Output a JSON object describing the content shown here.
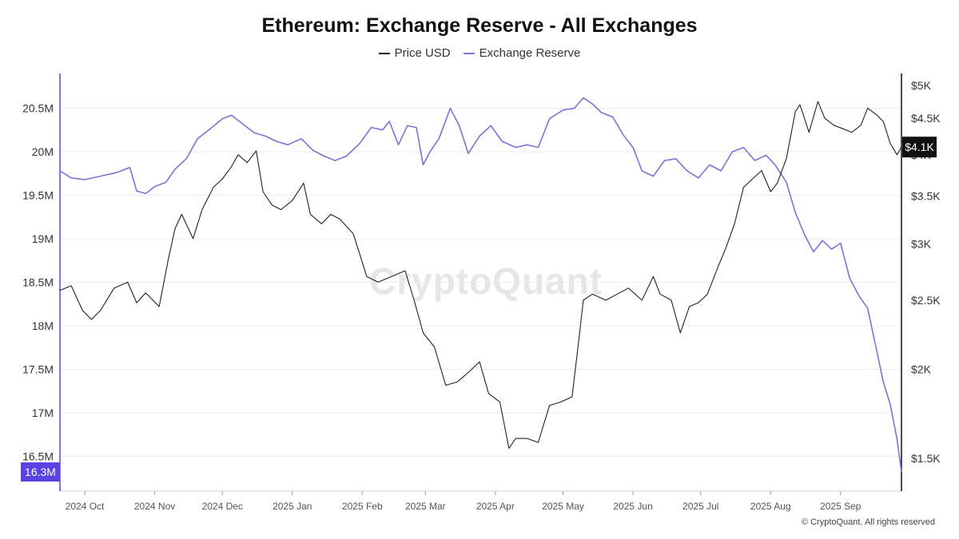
{
  "title": "Ethereum: Exchange Reserve - All Exchanges",
  "watermark": "CryptoQuant",
  "copyright": "© CryptoQuant. All rights reserved",
  "colors": {
    "price": "#222222",
    "reserve": "#7b73d6",
    "reserve_badge": "#5a43e0",
    "price_badge": "#111111"
  },
  "chart_data": {
    "type": "line",
    "title": "Ethereum: Exchange Reserve - All Exchanges",
    "legend": [
      "Price USD",
      "Exchange Reserve"
    ],
    "legend_position": "top-center",
    "x_labels": [
      "2024 Oct",
      "2024 Nov",
      "2024 Dec",
      "2025 Jan",
      "2025 Feb",
      "2025 Mar",
      "2025 Apr",
      "2025 May",
      "2025 Jun",
      "2025 Jul",
      "2025 Aug",
      "2025 Sep"
    ],
    "x_range": [
      "2024-09-20",
      "2025-09-28"
    ],
    "left_axis": {
      "label": "",
      "ticks": [
        20.5,
        20,
        19.5,
        19,
        18.5,
        18,
        17.5,
        17,
        16.5
      ],
      "tick_labels": [
        "20.5M",
        "20M",
        "19.5M",
        "19M",
        "18.5M",
        "18M",
        "17.5M",
        "17M",
        "16.5M"
      ],
      "range": [
        16.1,
        20.9
      ]
    },
    "right_axis": {
      "label": "",
      "scale": "log",
      "ticks": [
        5000,
        4500,
        4000,
        3500,
        3000,
        2500,
        2000,
        1500
      ],
      "tick_labels": [
        "$5K",
        "$4.5K",
        "$4K",
        "$3.5K",
        "$3K",
        "$2.5K",
        "$2K",
        "$1.5K"
      ],
      "range": [
        1350,
        5200
      ]
    },
    "grid": "horizontal",
    "current_badges": {
      "reserve": "16.3M",
      "price": "$4.1K"
    },
    "series": [
      {
        "name": "Exchange Reserve",
        "axis": "left",
        "unit": "M ETH",
        "points": [
          [
            "2024-09-20",
            19.78
          ],
          [
            "2024-09-25",
            19.7
          ],
          [
            "2024-10-01",
            19.68
          ],
          [
            "2024-10-08",
            19.72
          ],
          [
            "2024-10-15",
            19.76
          ],
          [
            "2024-10-21",
            19.82
          ],
          [
            "2024-10-24",
            19.55
          ],
          [
            "2024-10-28",
            19.52
          ],
          [
            "2024-11-01",
            19.6
          ],
          [
            "2024-11-06",
            19.65
          ],
          [
            "2024-11-10",
            19.8
          ],
          [
            "2024-11-15",
            19.92
          ],
          [
            "2024-11-20",
            20.15
          ],
          [
            "2024-11-25",
            20.25
          ],
          [
            "2024-12-01",
            20.38
          ],
          [
            "2024-12-05",
            20.42
          ],
          [
            "2024-12-10",
            20.32
          ],
          [
            "2024-12-15",
            20.22
          ],
          [
            "2024-12-20",
            20.18
          ],
          [
            "2024-12-25",
            20.12
          ],
          [
            "2024-12-30",
            20.08
          ],
          [
            "2025-01-05",
            20.15
          ],
          [
            "2025-01-10",
            20.02
          ],
          [
            "2025-01-15",
            19.95
          ],
          [
            "2025-01-20",
            19.9
          ],
          [
            "2025-01-25",
            19.95
          ],
          [
            "2025-01-31",
            20.1
          ],
          [
            "2025-02-05",
            20.28
          ],
          [
            "2025-02-10",
            20.25
          ],
          [
            "2025-02-13",
            20.35
          ],
          [
            "2025-02-17",
            20.08
          ],
          [
            "2025-02-21",
            20.3
          ],
          [
            "2025-02-25",
            20.28
          ],
          [
            "2025-02-28",
            19.85
          ],
          [
            "2025-03-03",
            20.0
          ],
          [
            "2025-03-07",
            20.15
          ],
          [
            "2025-03-12",
            20.5
          ],
          [
            "2025-03-16",
            20.3
          ],
          [
            "2025-03-20",
            19.98
          ],
          [
            "2025-03-25",
            20.18
          ],
          [
            "2025-03-30",
            20.3
          ],
          [
            "2025-04-04",
            20.12
          ],
          [
            "2025-04-10",
            20.05
          ],
          [
            "2025-04-15",
            20.08
          ],
          [
            "2025-04-20",
            20.05
          ],
          [
            "2025-04-25",
            20.38
          ],
          [
            "2025-05-01",
            20.48
          ],
          [
            "2025-05-06",
            20.5
          ],
          [
            "2025-05-10",
            20.62
          ],
          [
            "2025-05-14",
            20.55
          ],
          [
            "2025-05-18",
            20.45
          ],
          [
            "2025-05-23",
            20.4
          ],
          [
            "2025-05-28",
            20.18
          ],
          [
            "2025-06-01",
            20.05
          ],
          [
            "2025-06-05",
            19.78
          ],
          [
            "2025-06-10",
            19.72
          ],
          [
            "2025-06-15",
            19.9
          ],
          [
            "2025-06-20",
            19.92
          ],
          [
            "2025-06-25",
            19.78
          ],
          [
            "2025-06-30",
            19.7
          ],
          [
            "2025-07-05",
            19.85
          ],
          [
            "2025-07-10",
            19.78
          ],
          [
            "2025-07-15",
            20.0
          ],
          [
            "2025-07-20",
            20.05
          ],
          [
            "2025-07-25",
            19.9
          ],
          [
            "2025-07-30",
            19.96
          ],
          [
            "2025-08-03",
            19.85
          ],
          [
            "2025-08-08",
            19.65
          ],
          [
            "2025-08-12",
            19.3
          ],
          [
            "2025-08-16",
            19.05
          ],
          [
            "2025-08-20",
            18.85
          ],
          [
            "2025-08-24",
            18.98
          ],
          [
            "2025-08-28",
            18.88
          ],
          [
            "2025-09-01",
            18.95
          ],
          [
            "2025-09-05",
            18.55
          ],
          [
            "2025-09-09",
            18.35
          ],
          [
            "2025-09-13",
            18.2
          ],
          [
            "2025-09-17",
            17.72
          ],
          [
            "2025-09-20",
            17.35
          ],
          [
            "2025-09-23",
            17.1
          ],
          [
            "2025-09-26",
            16.7
          ],
          [
            "2025-09-28",
            16.32
          ]
        ]
      },
      {
        "name": "Price USD",
        "axis": "right",
        "unit": "USD",
        "points": [
          [
            "2024-09-20",
            2580
          ],
          [
            "2024-09-25",
            2620
          ],
          [
            "2024-09-30",
            2420
          ],
          [
            "2024-10-04",
            2350
          ],
          [
            "2024-10-08",
            2420
          ],
          [
            "2024-10-14",
            2600
          ],
          [
            "2024-10-20",
            2650
          ],
          [
            "2024-10-24",
            2480
          ],
          [
            "2024-10-28",
            2560
          ],
          [
            "2024-11-03",
            2450
          ],
          [
            "2024-11-07",
            2850
          ],
          [
            "2024-11-10",
            3150
          ],
          [
            "2024-11-13",
            3300
          ],
          [
            "2024-11-18",
            3050
          ],
          [
            "2024-11-22",
            3350
          ],
          [
            "2024-11-27",
            3600
          ],
          [
            "2024-12-01",
            3700
          ],
          [
            "2024-12-05",
            3850
          ],
          [
            "2024-12-08",
            4000
          ],
          [
            "2024-12-12",
            3900
          ],
          [
            "2024-12-16",
            4050
          ],
          [
            "2024-12-19",
            3550
          ],
          [
            "2024-12-23",
            3400
          ],
          [
            "2024-12-27",
            3350
          ],
          [
            "2025-01-01",
            3450
          ],
          [
            "2025-01-06",
            3650
          ],
          [
            "2025-01-09",
            3300
          ],
          [
            "2025-01-14",
            3200
          ],
          [
            "2025-01-18",
            3300
          ],
          [
            "2025-01-22",
            3250
          ],
          [
            "2025-01-28",
            3100
          ],
          [
            "2025-02-03",
            2700
          ],
          [
            "2025-02-08",
            2650
          ],
          [
            "2025-02-14",
            2700
          ],
          [
            "2025-02-20",
            2750
          ],
          [
            "2025-02-24",
            2500
          ],
          [
            "2025-02-28",
            2250
          ],
          [
            "2025-03-05",
            2150
          ],
          [
            "2025-03-10",
            1900
          ],
          [
            "2025-03-15",
            1920
          ],
          [
            "2025-03-20",
            1980
          ],
          [
            "2025-03-25",
            2050
          ],
          [
            "2025-03-29",
            1850
          ],
          [
            "2025-04-03",
            1800
          ],
          [
            "2025-04-07",
            1550
          ],
          [
            "2025-04-10",
            1600
          ],
          [
            "2025-04-15",
            1600
          ],
          [
            "2025-04-20",
            1580
          ],
          [
            "2025-04-25",
            1780
          ],
          [
            "2025-04-30",
            1800
          ],
          [
            "2025-05-05",
            1830
          ],
          [
            "2025-05-08",
            2200
          ],
          [
            "2025-05-10",
            2500
          ],
          [
            "2025-05-14",
            2550
          ],
          [
            "2025-05-20",
            2500
          ],
          [
            "2025-05-25",
            2550
          ],
          [
            "2025-05-30",
            2600
          ],
          [
            "2025-06-05",
            2500
          ],
          [
            "2025-06-10",
            2700
          ],
          [
            "2025-06-13",
            2550
          ],
          [
            "2025-06-18",
            2500
          ],
          [
            "2025-06-22",
            2250
          ],
          [
            "2025-06-26",
            2450
          ],
          [
            "2025-06-30",
            2480
          ],
          [
            "2025-07-04",
            2550
          ],
          [
            "2025-07-09",
            2800
          ],
          [
            "2025-07-12",
            2950
          ],
          [
            "2025-07-16",
            3200
          ],
          [
            "2025-07-20",
            3600
          ],
          [
            "2025-07-24",
            3700
          ],
          [
            "2025-07-28",
            3800
          ],
          [
            "2025-08-01",
            3550
          ],
          [
            "2025-08-04",
            3650
          ],
          [
            "2025-08-08",
            3950
          ],
          [
            "2025-08-12",
            4600
          ],
          [
            "2025-08-14",
            4700
          ],
          [
            "2025-08-18",
            4300
          ],
          [
            "2025-08-22",
            4750
          ],
          [
            "2025-08-25",
            4500
          ],
          [
            "2025-08-29",
            4400
          ],
          [
            "2025-09-02",
            4350
          ],
          [
            "2025-09-06",
            4300
          ],
          [
            "2025-09-10",
            4400
          ],
          [
            "2025-09-13",
            4650
          ],
          [
            "2025-09-17",
            4550
          ],
          [
            "2025-09-20",
            4450
          ],
          [
            "2025-09-23",
            4150
          ],
          [
            "2025-09-26",
            4000
          ],
          [
            "2025-09-28",
            4100
          ]
        ]
      }
    ]
  }
}
